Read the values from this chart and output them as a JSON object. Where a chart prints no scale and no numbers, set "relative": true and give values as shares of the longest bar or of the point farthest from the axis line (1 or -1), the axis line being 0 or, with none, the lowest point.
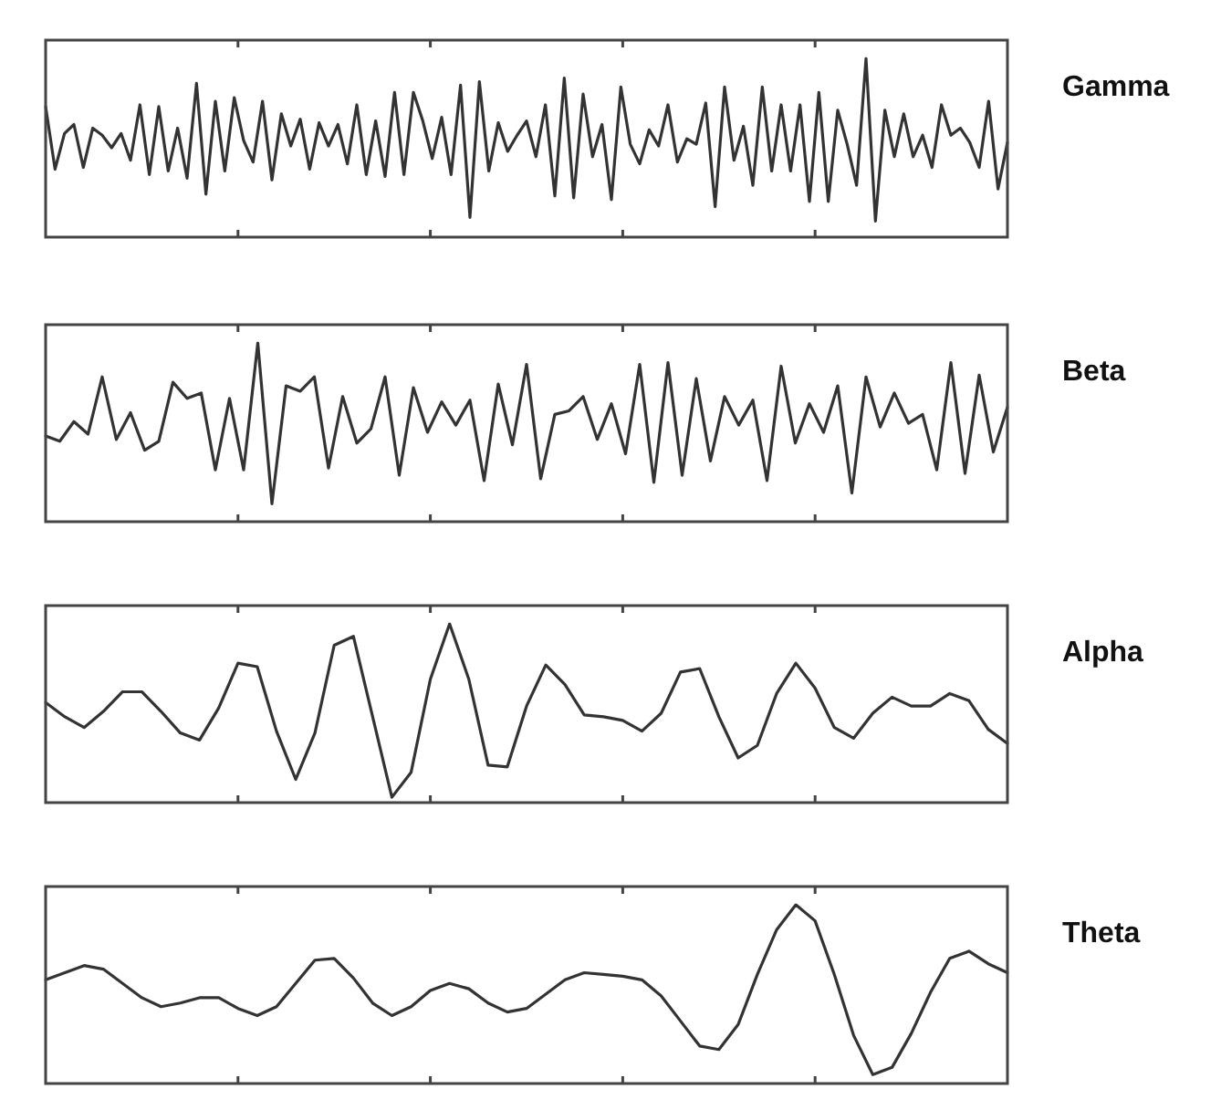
{
  "chart_data": [
    {
      "type": "line",
      "relative": true,
      "tick_labels": false,
      "legend": false,
      "marker": "none",
      "line_style": "solid",
      "categories": [
        null,
        null,
        null,
        null,
        null,
        null,
        null,
        null,
        null,
        null,
        null,
        null,
        null,
        null,
        null,
        null,
        null,
        null,
        null,
        null,
        null,
        null,
        null,
        null,
        null,
        null,
        null,
        null,
        null,
        null,
        null,
        null,
        null,
        null,
        null,
        null,
        null,
        null,
        null,
        null,
        null,
        null,
        null,
        null,
        null,
        null,
        null,
        null,
        null,
        null,
        null,
        null,
        null,
        null,
        null,
        null,
        null,
        null,
        null,
        null,
        null,
        null,
        null,
        null,
        null,
        null,
        null,
        null,
        null,
        null,
        null,
        null,
        null,
        null,
        null,
        null,
        null,
        null,
        null,
        null,
        null,
        null,
        null,
        null,
        null,
        null,
        null,
        null,
        null,
        null,
        null,
        null,
        null,
        null,
        null,
        null,
        null,
        null,
        null,
        null,
        null,
        null,
        null
      ],
      "series": [
        {
          "name": "Gamma",
          "color": "#333333",
          "values": [
            0.73,
            0.38,
            0.58,
            0.63,
            0.39,
            0.61,
            0.57,
            0.5,
            0.58,
            0.43,
            0.74,
            0.35,
            0.73,
            0.37,
            0.61,
            0.33,
            0.86,
            0.24,
            0.76,
            0.37,
            0.78,
            0.54,
            0.42,
            0.76,
            0.32,
            0.69,
            0.51,
            0.66,
            0.38,
            0.64,
            0.51,
            0.63,
            0.41,
            0.74,
            0.35,
            0.65,
            0.34,
            0.81,
            0.35,
            0.81,
            0.65,
            0.44,
            0.67,
            0.35,
            0.85,
            0.11,
            0.87,
            0.37,
            0.64,
            0.48,
            0.57,
            0.65,
            0.45,
            0.74,
            0.23,
            0.89,
            0.22,
            0.8,
            0.45,
            0.63,
            0.21,
            0.84,
            0.52,
            0.41,
            0.6,
            0.51,
            0.74,
            0.42,
            0.55,
            0.52,
            0.75,
            0.17,
            0.84,
            0.43,
            0.62,
            0.29,
            0.84,
            0.37,
            0.74,
            0.37,
            0.74,
            0.2,
            0.81,
            0.2,
            0.71,
            0.52,
            0.29,
            1,
            0.09,
            0.71,
            0.45,
            0.69,
            0.45,
            0.57,
            0.39,
            0.74,
            0.57,
            0.61,
            0.53,
            0.39,
            0.76,
            0.27,
            0.53
          ]
        }
      ]
    },
    {
      "type": "line",
      "relative": true,
      "tick_labels": false,
      "legend": false,
      "marker": "none",
      "line_style": "solid",
      "categories": [
        null,
        null,
        null,
        null,
        null,
        null,
        null,
        null,
        null,
        null,
        null,
        null,
        null,
        null,
        null,
        null,
        null,
        null,
        null,
        null,
        null,
        null,
        null,
        null,
        null,
        null,
        null,
        null,
        null,
        null,
        null,
        null,
        null,
        null,
        null,
        null,
        null,
        null,
        null,
        null,
        null,
        null,
        null,
        null,
        null,
        null,
        null,
        null,
        null,
        null,
        null,
        null,
        null,
        null,
        null,
        null,
        null,
        null,
        null,
        null,
        null,
        null,
        null,
        null,
        null,
        null,
        null,
        null,
        null
      ],
      "series": [
        {
          "name": "Beta",
          "color": "#333333",
          "values": [
            0.48,
            0.45,
            0.56,
            0.49,
            0.81,
            0.46,
            0.61,
            0.4,
            0.45,
            0.78,
            0.69,
            0.72,
            0.29,
            0.69,
            0.29,
            1,
            0.1,
            0.76,
            0.73,
            0.81,
            0.3,
            0.7,
            0.44,
            0.52,
            0.81,
            0.26,
            0.75,
            0.5,
            0.67,
            0.54,
            0.68,
            0.23,
            0.77,
            0.43,
            0.88,
            0.24,
            0.6,
            0.62,
            0.7,
            0.46,
            0.66,
            0.38,
            0.88,
            0.22,
            0.89,
            0.26,
            0.8,
            0.34,
            0.7,
            0.54,
            0.68,
            0.23,
            0.87,
            0.44,
            0.66,
            0.5,
            0.76,
            0.16,
            0.81,
            0.53,
            0.72,
            0.55,
            0.6,
            0.29,
            0.89,
            0.27,
            0.82,
            0.39,
            0.64
          ]
        }
      ]
    },
    {
      "type": "line",
      "relative": true,
      "tick_labels": false,
      "legend": false,
      "marker": "none",
      "line_style": "solid",
      "categories": [
        null,
        null,
        null,
        null,
        null,
        null,
        null,
        null,
        null,
        null,
        null,
        null,
        null,
        null,
        null,
        null,
        null,
        null,
        null,
        null,
        null,
        null,
        null,
        null,
        null,
        null,
        null,
        null,
        null,
        null,
        null,
        null,
        null,
        null,
        null,
        null,
        null,
        null,
        null,
        null,
        null,
        null,
        null,
        null,
        null,
        null,
        null,
        null,
        null,
        null,
        null
      ],
      "series": [
        {
          "name": "Alpha",
          "color": "#333333",
          "values": [
            0.56,
            0.48,
            0.42,
            0.51,
            0.62,
            0.62,
            0.51,
            0.39,
            0.35,
            0.53,
            0.78,
            0.76,
            0.4,
            0.13,
            0.39,
            0.88,
            0.93,
            0.48,
            0.03,
            0.17,
            0.69,
            1,
            0.69,
            0.21,
            0.2,
            0.54,
            0.77,
            0.66,
            0.49,
            0.48,
            0.46,
            0.4,
            0.5,
            0.73,
            0.75,
            0.48,
            0.25,
            0.32,
            0.61,
            0.78,
            0.64,
            0.42,
            0.36,
            0.5,
            0.59,
            0.54,
            0.54,
            0.61,
            0.57,
            0.41,
            0.33
          ]
        }
      ]
    },
    {
      "type": "line",
      "relative": true,
      "tick_labels": false,
      "legend": false,
      "marker": "none",
      "line_style": "solid",
      "categories": [
        null,
        null,
        null,
        null,
        null,
        null,
        null,
        null,
        null,
        null,
        null,
        null,
        null,
        null,
        null,
        null,
        null,
        null,
        null,
        null,
        null,
        null,
        null,
        null,
        null,
        null,
        null,
        null,
        null,
        null,
        null,
        null,
        null,
        null,
        null,
        null,
        null,
        null,
        null,
        null,
        null,
        null,
        null,
        null,
        null,
        null,
        null,
        null,
        null,
        null,
        null
      ],
      "series": [
        {
          "name": "Theta",
          "color": "#333333",
          "values": [
            0.58,
            0.62,
            0.66,
            0.64,
            0.56,
            0.48,
            0.43,
            0.45,
            0.48,
            0.48,
            0.42,
            0.38,
            0.43,
            0.56,
            0.69,
            0.7,
            0.59,
            0.45,
            0.38,
            0.43,
            0.52,
            0.56,
            0.53,
            0.45,
            0.4,
            0.42,
            0.5,
            0.58,
            0.62,
            0.61,
            0.6,
            0.58,
            0.49,
            0.35,
            0.21,
            0.19,
            0.33,
            0.61,
            0.86,
            1,
            0.91,
            0.61,
            0.27,
            0.05,
            0.09,
            0.28,
            0.51,
            0.7,
            0.74,
            0.67,
            0.62
          ]
        }
      ]
    }
  ]
}
